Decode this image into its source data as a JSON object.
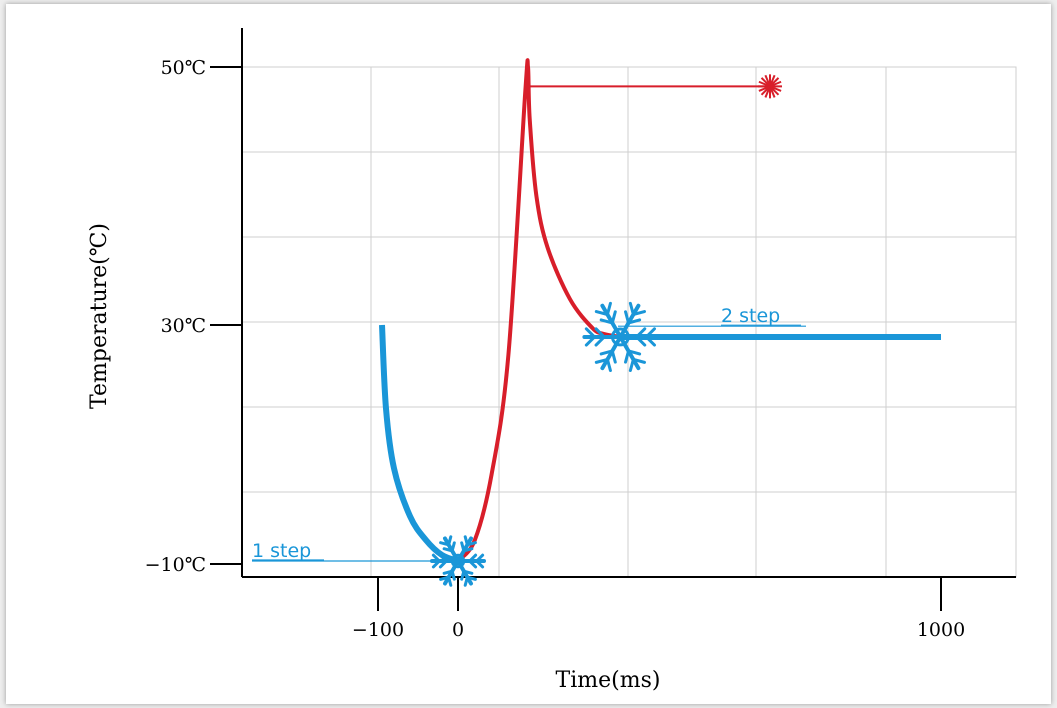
{
  "chart_data": {
    "type": "line",
    "title": "",
    "xlabel": "Time(ms)",
    "ylabel": "Temperature(℃)",
    "x_ticks": [
      {
        "value": -100,
        "label": "−100"
      },
      {
        "value": 0,
        "label": "0"
      },
      {
        "value": 1000,
        "label": "1000"
      }
    ],
    "y_ticks": [
      {
        "value": -10,
        "label": "−10℃"
      },
      {
        "value": 30,
        "label": "30℃"
      },
      {
        "value": 50,
        "label": "50℃"
      }
    ],
    "grid": true,
    "series": [
      {
        "color": "#1a96d8",
        "points": [
          [
            -95,
            30
          ],
          [
            -90,
            16
          ],
          [
            -80,
            6
          ],
          [
            -60,
            -2
          ],
          [
            -40,
            -6
          ],
          [
            -20,
            -8.5
          ],
          [
            0,
            -9.5
          ]
        ]
      },
      {
        "color": "#d81e2a",
        "points": [
          [
            0,
            -9.5
          ],
          [
            30,
            -6
          ],
          [
            60,
            5
          ],
          [
            90,
            25
          ],
          [
            120,
            48
          ],
          [
            125,
            50
          ],
          [
            128,
            46
          ],
          [
            140,
            40
          ],
          [
            160,
            36
          ],
          [
            200,
            32
          ],
          [
            240,
            29.5
          ],
          [
            260,
            28.5
          ],
          [
            290,
            28
          ]
        ]
      },
      {
        "color": "#d81e2a",
        "points": [
          [
            125,
            48.5
          ],
          [
            620,
            48.5
          ]
        ]
      },
      {
        "color": "#1a96d8",
        "points": [
          [
            290,
            28
          ],
          [
            1000,
            28
          ]
        ]
      }
    ],
    "annotations": [
      {
        "text": "1 step",
        "color": "#1a96d8",
        "x": -30,
        "y": -9.5
      },
      {
        "text": "2 step",
        "color": "#1a96d8",
        "x": 300,
        "y": 29.8
      }
    ],
    "markers": [
      {
        "icon": "snowflake-icon",
        "color": "#1a96d8",
        "x": 0,
        "y": -9.5
      },
      {
        "icon": "snowflake-icon",
        "color": "#1a96d8",
        "x": 290,
        "y": 28
      },
      {
        "icon": "starburst-icon",
        "color": "#d81e2a",
        "x": 620,
        "y": 48.5
      }
    ]
  }
}
